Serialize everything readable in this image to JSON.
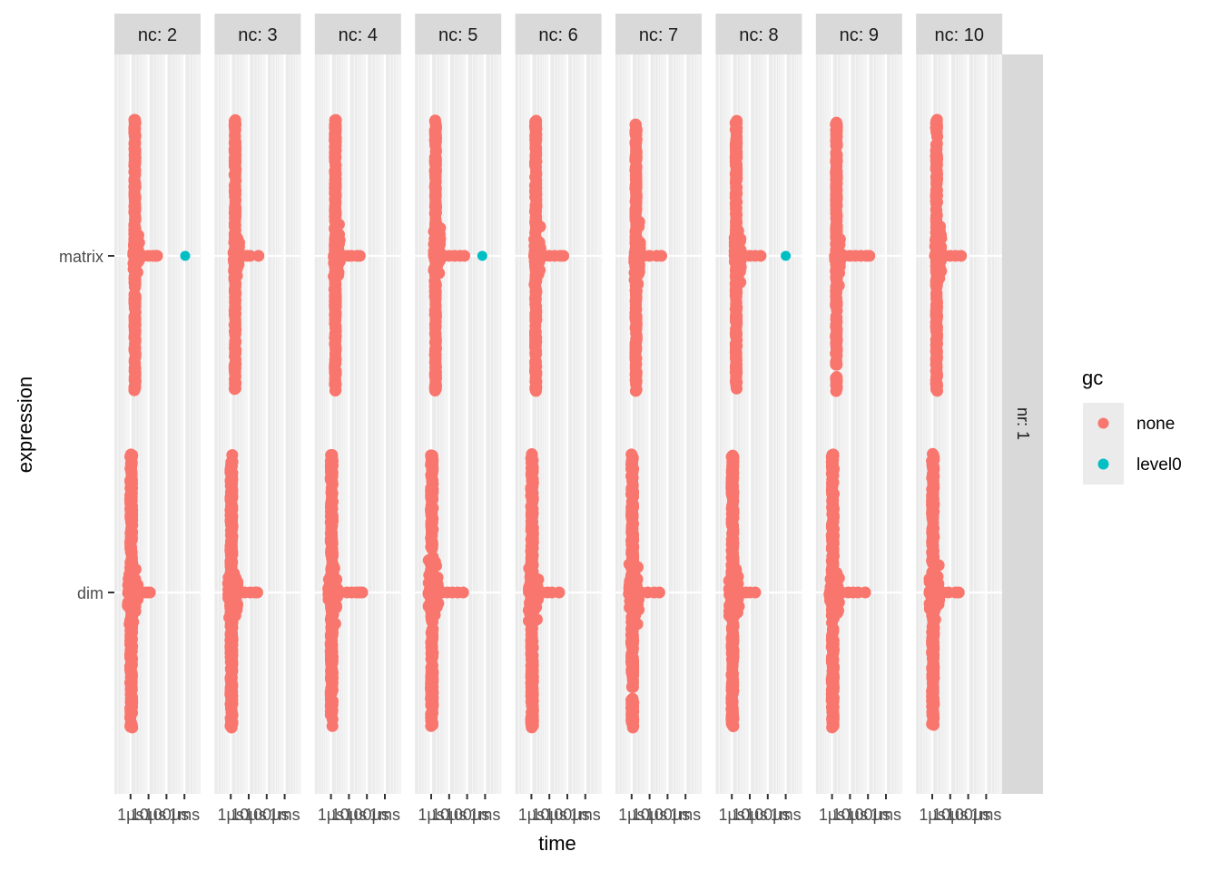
{
  "chart_data": {
    "type": "scatter",
    "xlabel": "time",
    "ylabel": "expression",
    "x_scale": "log10",
    "x_unit": "µs",
    "x_ticks": [
      {
        "value": 1,
        "label": "1µs"
      },
      {
        "value": 10,
        "label": "10µs"
      },
      {
        "value": 100,
        "label": "100µs"
      },
      {
        "value": 1000,
        "label": "1ms"
      }
    ],
    "y_categories": [
      "matrix",
      "dim"
    ],
    "facet_columns": [
      "nc: 2",
      "nc: 3",
      "nc: 4",
      "nc: 5",
      "nc: 6",
      "nc: 7",
      "nc: 8",
      "nc: 9",
      "nc: 10"
    ],
    "facet_row": "nr: 1",
    "legend": {
      "title": "gc",
      "position": "right",
      "entries": [
        {
          "label": "none",
          "color": "#F8766D"
        },
        {
          "label": "level0",
          "color": "#00BFC4"
        }
      ]
    },
    "grid": true,
    "panels": [
      {
        "facet": "nc: 2",
        "matrix": {
          "band": [
            1.6,
            1.9
          ],
          "body": [
            1.4,
            3.2
          ],
          "tail": [
            5,
            10,
            18,
            25,
            30
          ],
          "level0": [
            1100
          ]
        },
        "dim": {
          "band": [
            0.95,
            1.25
          ],
          "body": [
            0.7,
            2.5
          ],
          "tail": [
            3.2,
            6,
            9,
            12
          ]
        }
      },
      {
        "facet": "nc: 3",
        "matrix": {
          "band": [
            1.6,
            1.9
          ],
          "body": [
            1.4,
            3.0
          ],
          "tail": [
            4.5,
            8,
            12,
            35
          ]
        },
        "dim": {
          "band": [
            0.95,
            1.25
          ],
          "body": [
            0.7,
            2.4
          ],
          "tail": [
            3,
            6,
            12,
            22,
            30
          ]
        }
      },
      {
        "facet": "nc: 4",
        "matrix": {
          "band": [
            1.6,
            1.9
          ],
          "body": [
            1.4,
            3.2
          ],
          "tail": [
            5,
            9,
            14,
            28,
            40
          ]
        },
        "dim": {
          "band": [
            0.95,
            1.25
          ],
          "body": [
            0.7,
            2.5
          ],
          "tail": [
            3.5,
            8,
            14,
            25,
            38,
            55
          ]
        }
      },
      {
        "facet": "nc: 5",
        "matrix": {
          "band": [
            1.6,
            1.9
          ],
          "body": [
            1.4,
            3.2
          ],
          "tail": [
            5,
            10,
            20,
            40,
            70
          ],
          "level0": [
            700
          ]
        },
        "dim": {
          "band": [
            0.95,
            1.25
          ],
          "body": [
            0.7,
            2.5
          ],
          "tail": [
            4,
            8,
            15,
            30,
            60
          ]
        }
      },
      {
        "facet": "nc: 6",
        "matrix": {
          "band": [
            1.6,
            1.9
          ],
          "body": [
            1.4,
            3.2
          ],
          "tail": [
            5,
            10,
            20,
            40,
            60
          ]
        },
        "dim": {
          "band": [
            0.95,
            1.25
          ],
          "body": [
            0.7,
            2.5
          ],
          "tail": [
            4,
            8,
            14,
            35
          ]
        }
      },
      {
        "facet": "nc: 7",
        "matrix": {
          "band": [
            1.6,
            1.9
          ],
          "body": [
            1.4,
            3.2
          ],
          "tail": [
            5,
            10,
            25,
            45
          ]
        },
        "dim": {
          "band": [
            0.95,
            1.25
          ],
          "body": [
            0.7,
            2.5
          ],
          "tail": [
            3.5,
            8,
            18,
            35
          ]
        }
      },
      {
        "facet": "nc: 8",
        "matrix": {
          "band": [
            1.6,
            1.9
          ],
          "body": [
            1.4,
            3.2
          ],
          "tail": [
            5,
            10,
            20,
            40
          ],
          "level0": [
            1000
          ]
        },
        "dim": {
          "band": [
            0.95,
            1.25
          ],
          "body": [
            0.7,
            2.5
          ],
          "tail": [
            3,
            6,
            10,
            20
          ]
        }
      },
      {
        "facet": "nc: 9",
        "matrix": {
          "band": [
            1.6,
            1.9
          ],
          "body": [
            1.4,
            3.2
          ],
          "tail": [
            5,
            10,
            20,
            40,
            80,
            120
          ]
        },
        "dim": {
          "band": [
            0.95,
            1.25
          ],
          "body": [
            0.7,
            2.5
          ],
          "tail": [
            3.5,
            8,
            15,
            28,
            70
          ]
        }
      },
      {
        "facet": "nc: 10",
        "matrix": {
          "band": [
            1.6,
            1.9
          ],
          "body": [
            1.4,
            3.2
          ],
          "tail": [
            5,
            10,
            20,
            40
          ]
        },
        "dim": {
          "band": [
            0.95,
            1.25
          ],
          "body": [
            0.7,
            2.5
          ],
          "tail": [
            4,
            8,
            20,
            30
          ]
        }
      }
    ]
  }
}
